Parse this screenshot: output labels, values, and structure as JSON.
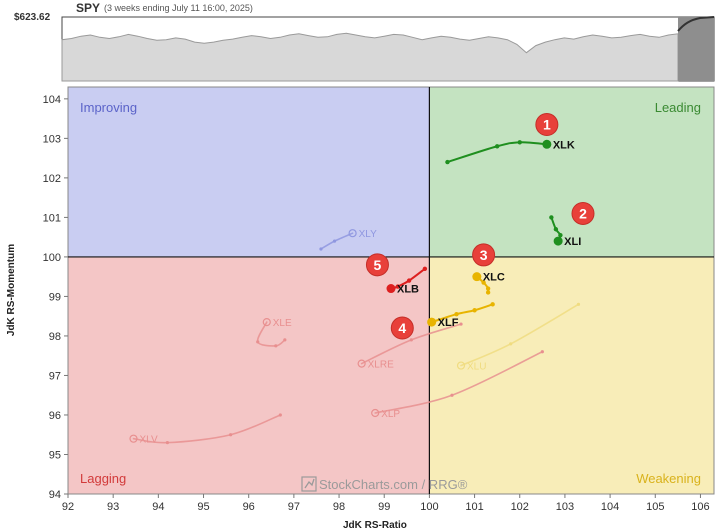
{
  "spy_panel": {
    "ticker": "SPY",
    "subtitle": "(3 weeks ending July 11 16:00, 2025)",
    "price_label": "$623.62"
  },
  "watermark": "StockCharts.com / RRG®",
  "colors": {
    "improving": "#c9cdf2",
    "leading": "#c4e3c1",
    "weakening": "#f8edb8",
    "lagging": "#f4c6c6",
    "improving_text": "#5b63c9",
    "leading_text": "#3a8a32",
    "weakening_text": "#d9b21c",
    "lagging_text": "#d23a3a",
    "annotation": "#e8403a"
  },
  "chart_data": {
    "type": "scatter",
    "xlabel": "JdK RS-Ratio",
    "ylabel": "JdK RS-Momentum",
    "xlim": [
      92,
      106.3
    ],
    "ylim": [
      94,
      104.3
    ],
    "x_ticks": [
      "92",
      "93",
      "94",
      "95",
      "96",
      "97",
      "98",
      "99",
      "100",
      "101",
      "102",
      "103",
      "104",
      "105",
      "106"
    ],
    "y_ticks": [
      "94",
      "95",
      "96",
      "97",
      "98",
      "99",
      "100",
      "101",
      "102",
      "103",
      "104"
    ],
    "quadrants": {
      "improving": "Improving",
      "leading": "Leading",
      "weakening": "Weakening",
      "lagging": "Lagging"
    },
    "series": [
      {
        "name": "XLK",
        "color": "#1f8f1f",
        "faded": false,
        "points": [
          [
            100.4,
            102.4
          ],
          [
            101.5,
            102.8
          ],
          [
            102.0,
            102.9
          ],
          [
            102.6,
            102.85
          ]
        ]
      },
      {
        "name": "XLI",
        "color": "#1f8f1f",
        "faded": false,
        "points": [
          [
            102.7,
            101.0
          ],
          [
            102.8,
            100.7
          ],
          [
            102.9,
            100.55
          ],
          [
            102.85,
            100.4
          ]
        ]
      },
      {
        "name": "XLC",
        "color": "#e8b400",
        "faded": false,
        "points": [
          [
            101.3,
            99.1
          ],
          [
            101.3,
            99.2
          ],
          [
            101.2,
            99.35
          ],
          [
            101.05,
            99.5
          ]
        ]
      },
      {
        "name": "XLF",
        "color": "#e8b400",
        "faded": false,
        "points": [
          [
            101.4,
            98.8
          ],
          [
            101.0,
            98.65
          ],
          [
            100.6,
            98.55
          ],
          [
            100.05,
            98.35
          ]
        ]
      },
      {
        "name": "XLB",
        "color": "#dd1f1f",
        "faded": false,
        "points": [
          [
            99.9,
            99.7
          ],
          [
            99.55,
            99.4
          ],
          [
            99.3,
            99.25
          ],
          [
            99.15,
            99.2
          ]
        ]
      },
      {
        "name": "XLY",
        "color": "#8f97e0",
        "faded": true,
        "points": [
          [
            97.6,
            100.2
          ],
          [
            97.9,
            100.4
          ],
          [
            98.3,
            100.6
          ]
        ]
      },
      {
        "name": "XLE",
        "color": "#e88f8f",
        "faded": true,
        "points": [
          [
            96.8,
            97.9
          ],
          [
            96.6,
            97.75
          ],
          [
            96.2,
            97.85
          ],
          [
            96.4,
            98.35
          ]
        ]
      },
      {
        "name": "XLRE",
        "color": "#e88f8f",
        "faded": true,
        "points": [
          [
            100.7,
            98.3
          ],
          [
            99.6,
            97.9
          ],
          [
            98.5,
            97.3
          ]
        ]
      },
      {
        "name": "XLU",
        "color": "#f0dc80",
        "faded": true,
        "points": [
          [
            103.3,
            98.8
          ],
          [
            101.8,
            97.8
          ],
          [
            100.7,
            97.25
          ]
        ]
      },
      {
        "name": "XLP",
        "color": "#e88f8f",
        "faded": true,
        "points": [
          [
            102.5,
            97.6
          ],
          [
            100.5,
            96.5
          ],
          [
            98.8,
            96.05
          ]
        ]
      },
      {
        "name": "XLV",
        "color": "#e88f8f",
        "faded": true,
        "points": [
          [
            96.7,
            96.0
          ],
          [
            95.6,
            95.5
          ],
          [
            94.2,
            95.3
          ],
          [
            93.45,
            95.4
          ]
        ]
      }
    ],
    "annotations": [
      {
        "label": "1",
        "x": 102.6,
        "y": 103.35
      },
      {
        "label": "2",
        "x": 103.4,
        "y": 101.1
      },
      {
        "label": "3",
        "x": 101.2,
        "y": 100.05
      },
      {
        "label": "4",
        "x": 99.4,
        "y": 98.2
      },
      {
        "label": "5",
        "x": 98.85,
        "y": 99.8
      }
    ]
  }
}
